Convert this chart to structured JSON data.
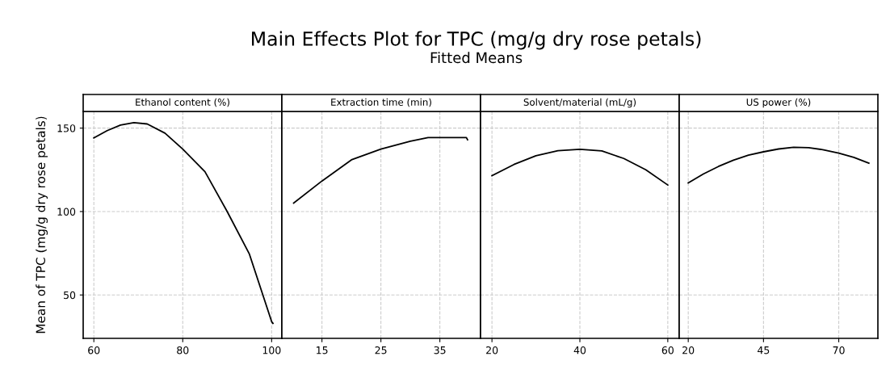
{
  "chart_data": [
    {
      "type": "line",
      "title": "Ethanol content (%)",
      "annotations": [
        "Main Effects Plot for TPC (mg/g dry rose petals)",
        "Fitted Means"
      ],
      "ylabel": "Mean of TPC (mg/g dry rose petals)",
      "xlim": [
        57.6,
        102.3
      ],
      "xticks": [
        60,
        80,
        100
      ],
      "ylim": [
        24,
        160
      ],
      "yticks": [
        50,
        100,
        150
      ],
      "grid": true,
      "series": [
        {
          "color": "#000000",
          "x": [
            60,
            63,
            66,
            69,
            72,
            76,
            80,
            85,
            90,
            95,
            100,
            100.3
          ],
          "values": [
            144.1,
            148.5,
            151.8,
            153.3,
            152.5,
            147,
            137.4,
            123.9,
            100,
            74.5,
            34,
            33
          ]
        }
      ]
    },
    {
      "type": "line",
      "title": "Extraction time (min)",
      "xlim": [
        8.2,
        41.9
      ],
      "xticks": [
        15,
        25,
        35
      ],
      "ylim": [
        24,
        160
      ],
      "yticks": [
        50,
        100,
        150
      ],
      "grid": true,
      "tick_labels": "x",
      "series": [
        {
          "color": "#000000",
          "x": [
            10.2,
            15,
            20,
            25,
            30,
            33,
            35,
            37.5,
            39.5,
            39.7
          ],
          "values": [
            105.1,
            118.3,
            131,
            137.4,
            142.2,
            144.3,
            144.3,
            144.3,
            144.3,
            143
          ]
        }
      ]
    },
    {
      "type": "line",
      "title": "Solvent/material (mL/g)",
      "xlim": [
        17.4,
        62.6
      ],
      "xticks": [
        20,
        40,
        60
      ],
      "ylim": [
        24,
        160
      ],
      "yticks": [
        50,
        100,
        150
      ],
      "grid": true,
      "tick_labels": "x",
      "series": [
        {
          "color": "#000000",
          "x": [
            20,
            25,
            30,
            35,
            40,
            45,
            50,
            55,
            60
          ],
          "values": [
            121.5,
            128.2,
            133.4,
            136.5,
            137.3,
            136.3,
            131.8,
            125,
            115.9
          ]
        }
      ]
    },
    {
      "type": "line",
      "title": "US power (%)",
      "xlim": [
        17,
        83
      ],
      "xticks": [
        20,
        45,
        70
      ],
      "ylim": [
        24,
        160
      ],
      "yticks": [
        50,
        100,
        150
      ],
      "grid": true,
      "tick_labels": "x",
      "series": [
        {
          "color": "#000000",
          "x": [
            20,
            25,
            30,
            35,
            40,
            45,
            50,
            55,
            60,
            65,
            70,
            75,
            80
          ],
          "values": [
            117.2,
            122.5,
            127,
            130.8,
            133.8,
            135.8,
            137.5,
            138.5,
            138.3,
            137,
            135,
            132.5,
            129
          ]
        }
      ]
    }
  ]
}
